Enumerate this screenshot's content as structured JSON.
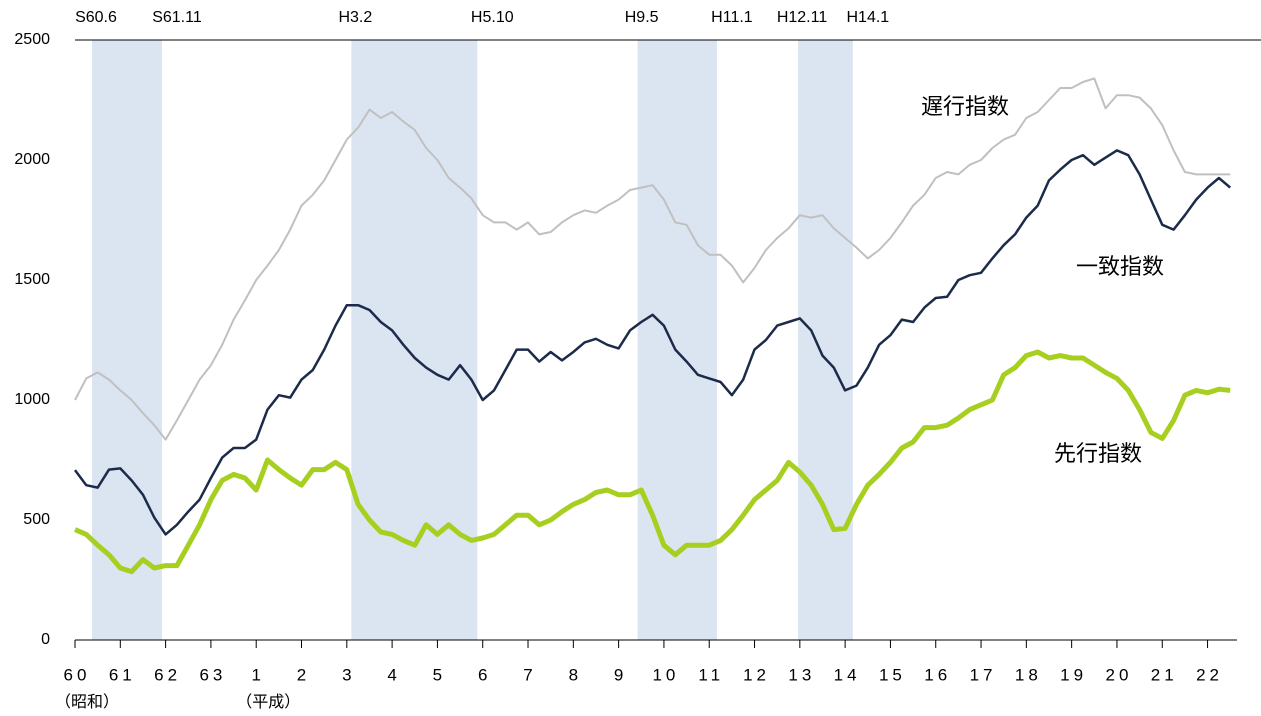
{
  "chart_data": {
    "type": "line",
    "x": [
      1985,
      1985.25,
      1985.5,
      1985.75,
      1986,
      1986.25,
      1986.5,
      1986.75,
      1987,
      1987.25,
      1987.5,
      1987.75,
      1988,
      1988.25,
      1988.5,
      1988.75,
      1989,
      1989.25,
      1989.5,
      1989.75,
      1990,
      1990.25,
      1990.5,
      1990.75,
      1991,
      1991.25,
      1991.5,
      1991.75,
      1992,
      1992.25,
      1992.5,
      1992.75,
      1993,
      1993.25,
      1993.5,
      1993.75,
      1994,
      1994.25,
      1994.5,
      1994.75,
      1995,
      1995.25,
      1995.5,
      1995.75,
      1996,
      1996.25,
      1996.5,
      1996.75,
      1997,
      1997.25,
      1997.5,
      1997.75,
      1998,
      1998.25,
      1998.5,
      1998.75,
      1999,
      1999.25,
      1999.5,
      1999.75,
      2000,
      2000.25,
      2000.5,
      2000.75,
      2001,
      2001.25,
      2001.5,
      2001.75,
      2002,
      2002.25,
      2002.5,
      2002.75,
      2003,
      2003.25,
      2003.5,
      2003.75,
      2004,
      2004.25,
      2004.5,
      2004.75,
      2005,
      2005.25,
      2005.5,
      2005.75,
      2006,
      2006.25,
      2006.5,
      2006.75,
      2007,
      2007.25,
      2007.5,
      2007.75,
      2008,
      2008.25,
      2008.5,
      2008.75,
      2009,
      2009.25,
      2009.5,
      2009.75,
      2010,
      2010.25,
      2010.5
    ],
    "series": [
      {
        "name": "遅行指数",
        "color": "#c0c0c0",
        "width": 2,
        "values": [
          1000,
          1090,
          1115,
          1085,
          1040,
          1000,
          945,
          895,
          835,
          915,
          1000,
          1085,
          1145,
          1230,
          1335,
          1415,
          1500,
          1560,
          1625,
          1710,
          1810,
          1855,
          1915,
          2000,
          2085,
          2135,
          2210,
          2175,
          2200,
          2160,
          2125,
          2050,
          2000,
          1925,
          1885,
          1840,
          1770,
          1740,
          1740,
          1710,
          1740,
          1690,
          1700,
          1740,
          1770,
          1790,
          1780,
          1810,
          1835,
          1875,
          1885,
          1895,
          1835,
          1740,
          1730,
          1645,
          1605,
          1605,
          1560,
          1490,
          1550,
          1625,
          1675,
          1715,
          1770,
          1760,
          1770,
          1715,
          1675,
          1635,
          1590,
          1625,
          1675,
          1740,
          1810,
          1855,
          1925,
          1950,
          1940,
          1980,
          2000,
          2050,
          2085,
          2105,
          2175,
          2200,
          2250,
          2300,
          2300,
          2325,
          2340,
          2215,
          2270,
          2270,
          2260,
          2215,
          2145,
          2040,
          1950,
          1940,
          1940,
          1940,
          1940
        ]
      },
      {
        "name": "一致指数",
        "color": "#1c2b4a",
        "width": 2.5,
        "values": [
          708,
          645,
          635,
          710,
          715,
          665,
          605,
          510,
          440,
          480,
          535,
          585,
          675,
          760,
          800,
          800,
          835,
          960,
          1020,
          1010,
          1085,
          1125,
          1210,
          1310,
          1395,
          1395,
          1375,
          1325,
          1290,
          1230,
          1175,
          1135,
          1105,
          1085,
          1145,
          1085,
          1000,
          1040,
          1125,
          1210,
          1210,
          1160,
          1200,
          1165,
          1200,
          1240,
          1255,
          1230,
          1215,
          1290,
          1325,
          1355,
          1310,
          1210,
          1160,
          1105,
          1090,
          1075,
          1020,
          1085,
          1210,
          1250,
          1310,
          1325,
          1340,
          1290,
          1185,
          1135,
          1040,
          1060,
          1135,
          1230,
          1270,
          1335,
          1325,
          1385,
          1425,
          1430,
          1500,
          1520,
          1530,
          1590,
          1645,
          1690,
          1760,
          1810,
          1915,
          1960,
          2000,
          2020,
          1980,
          2010,
          2040,
          2020,
          1940,
          1835,
          1730,
          1710,
          1770,
          1835,
          1885,
          1925,
          1885
        ]
      },
      {
        "name": "先行指数",
        "color": "#a6cf1f",
        "width": 5,
        "values": [
          460,
          440,
          395,
          355,
          300,
          285,
          335,
          300,
          310,
          310,
          395,
          480,
          585,
          665,
          690,
          675,
          625,
          750,
          710,
          675,
          645,
          710,
          710,
          740,
          710,
          565,
          500,
          450,
          440,
          415,
          395,
          480,
          440,
          480,
          440,
          415,
          425,
          440,
          480,
          520,
          520,
          480,
          500,
          535,
          565,
          585,
          615,
          625,
          605,
          605,
          625,
          520,
          395,
          355,
          395,
          395,
          395,
          415,
          460,
          520,
          585,
          625,
          665,
          740,
          700,
          645,
          565,
          460,
          465,
          565,
          645,
          690,
          740,
          800,
          825,
          885,
          885,
          895,
          925,
          960,
          980,
          1000,
          1105,
          1135,
          1185,
          1200,
          1175,
          1185,
          1175,
          1175,
          1145,
          1115,
          1090,
          1040,
          960,
          865,
          840,
          915,
          1020,
          1040,
          1030,
          1045,
          1040
        ]
      }
    ],
    "xlim": [
      1985,
      2010.65
    ],
    "xticks": [
      {
        "value": 1985,
        "label": "60"
      },
      {
        "value": 1986,
        "label": "61"
      },
      {
        "value": 1987,
        "label": "62"
      },
      {
        "value": 1988,
        "label": "63"
      },
      {
        "value": 1989,
        "label": "1"
      },
      {
        "value": 1990,
        "label": "2"
      },
      {
        "value": 1991,
        "label": "3"
      },
      {
        "value": 1992,
        "label": "4"
      },
      {
        "value": 1993,
        "label": "5"
      },
      {
        "value": 1994,
        "label": "6"
      },
      {
        "value": 1995,
        "label": "7"
      },
      {
        "value": 1996,
        "label": "8"
      },
      {
        "value": 1997,
        "label": "9"
      },
      {
        "value": 1998,
        "label": "10"
      },
      {
        "value": 1999,
        "label": "11"
      },
      {
        "value": 2000,
        "label": "12"
      },
      {
        "value": 2001,
        "label": "13"
      },
      {
        "value": 2002,
        "label": "14"
      },
      {
        "value": 2003,
        "label": "15"
      },
      {
        "value": 2004,
        "label": "16"
      },
      {
        "value": 2005,
        "label": "17"
      },
      {
        "value": 2006,
        "label": "18"
      },
      {
        "value": 2007,
        "label": "19"
      },
      {
        "value": 2008,
        "label": "20"
      },
      {
        "value": 2009,
        "label": "21"
      },
      {
        "value": 2010,
        "label": "22"
      }
    ],
    "ylim": [
      0,
      2500
    ],
    "yticks": [
      0,
      500,
      1000,
      1500,
      2000,
      2500
    ],
    "shades": [
      {
        "start": 1985.375,
        "end": 1986.92,
        "start_label": "S60.6",
        "end_label": "S61.11"
      },
      {
        "start": 1991.1,
        "end": 1993.88,
        "start_label": "H3.2",
        "end_label": "H5.10"
      },
      {
        "start": 1997.42,
        "end": 1999.17,
        "start_label": "H9.5",
        "end_label": "H11.1"
      },
      {
        "start": 2000.96,
        "end": 2002.17,
        "start_label": "H12.11",
        "end_label": "H14.1"
      }
    ],
    "shade_color": "#dbe5f1",
    "era_labels": [
      {
        "text": "（昭和）",
        "x": 1985
      },
      {
        "text": "（平成）",
        "x": 1989
      }
    ]
  }
}
